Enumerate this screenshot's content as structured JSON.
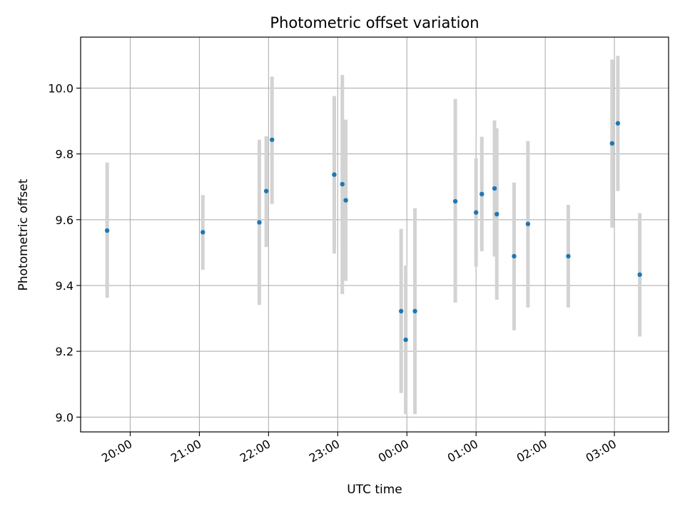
{
  "chart_data": {
    "type": "scatter",
    "title": "Photometric offset variation",
    "xlabel": "UTC time",
    "ylabel": "Photometric offset",
    "x_tick_labels": [
      "20:00",
      "21:00",
      "22:00",
      "23:00",
      "00:00",
      "01:00",
      "02:00",
      "03:00"
    ],
    "y_ticks": [
      9.0,
      9.2,
      9.4,
      9.6,
      9.8,
      10.0
    ],
    "y_tick_labels": [
      "9.0",
      "9.2",
      "9.4",
      "9.6",
      "9.8",
      "10.0"
    ],
    "xlim": [
      "19:17",
      "03:47"
    ],
    "ylim": [
      8.955,
      10.155
    ],
    "grid": true,
    "legend": "none",
    "points": [
      {
        "x": "19:40",
        "y": 9.567,
        "yerr_low": 9.363,
        "yerr_high": 9.774
      },
      {
        "x": "21:03",
        "y": 9.562,
        "yerr_low": 9.448,
        "yerr_high": 9.675
      },
      {
        "x": "21:52",
        "y": 9.592,
        "yerr_low": 9.341,
        "yerr_high": 9.843
      },
      {
        "x": "21:58",
        "y": 9.687,
        "yerr_low": 9.517,
        "yerr_high": 9.854
      },
      {
        "x": "22:03",
        "y": 9.843,
        "yerr_low": 9.648,
        "yerr_high": 10.035
      },
      {
        "x": "22:57",
        "y": 9.737,
        "yerr_low": 9.497,
        "yerr_high": 9.976
      },
      {
        "x": "23:04",
        "y": 9.708,
        "yerr_low": 9.374,
        "yerr_high": 10.04
      },
      {
        "x": "23:07",
        "y": 9.659,
        "yerr_low": 9.414,
        "yerr_high": 9.904
      },
      {
        "x": "23:55",
        "y": 9.322,
        "yerr_low": 9.073,
        "yerr_high": 9.572
      },
      {
        "x": "23:59",
        "y": 9.235,
        "yerr_low": 9.009,
        "yerr_high": 9.461
      },
      {
        "x": "00:07",
        "y": 9.322,
        "yerr_low": 9.009,
        "yerr_high": 9.635
      },
      {
        "x": "00:42",
        "y": 9.656,
        "yerr_low": 9.348,
        "yerr_high": 9.967
      },
      {
        "x": "01:00",
        "y": 9.622,
        "yerr_low": 9.457,
        "yerr_high": 9.787
      },
      {
        "x": "01:05",
        "y": 9.678,
        "yerr_low": 9.504,
        "yerr_high": 9.852
      },
      {
        "x": "01:16",
        "y": 9.695,
        "yerr_low": 9.488,
        "yerr_high": 9.902
      },
      {
        "x": "01:18",
        "y": 9.617,
        "yerr_low": 9.357,
        "yerr_high": 9.878
      },
      {
        "x": "01:33",
        "y": 9.489,
        "yerr_low": 9.264,
        "yerr_high": 9.713
      },
      {
        "x": "01:45",
        "y": 9.587,
        "yerr_low": 9.333,
        "yerr_high": 9.839
      },
      {
        "x": "02:20",
        "y": 9.489,
        "yerr_low": 9.333,
        "yerr_high": 9.645
      },
      {
        "x": "02:58",
        "y": 9.832,
        "yerr_low": 9.576,
        "yerr_high": 10.087
      },
      {
        "x": "03:03",
        "y": 9.893,
        "yerr_low": 9.687,
        "yerr_high": 10.098
      },
      {
        "x": "03:22",
        "y": 9.433,
        "yerr_low": 9.245,
        "yerr_high": 9.62
      }
    ],
    "colors": {
      "marker": "#1f77b4",
      "errorbar": "#d3d3d3",
      "grid": "#b0b0b0",
      "axes": "#000000"
    }
  }
}
